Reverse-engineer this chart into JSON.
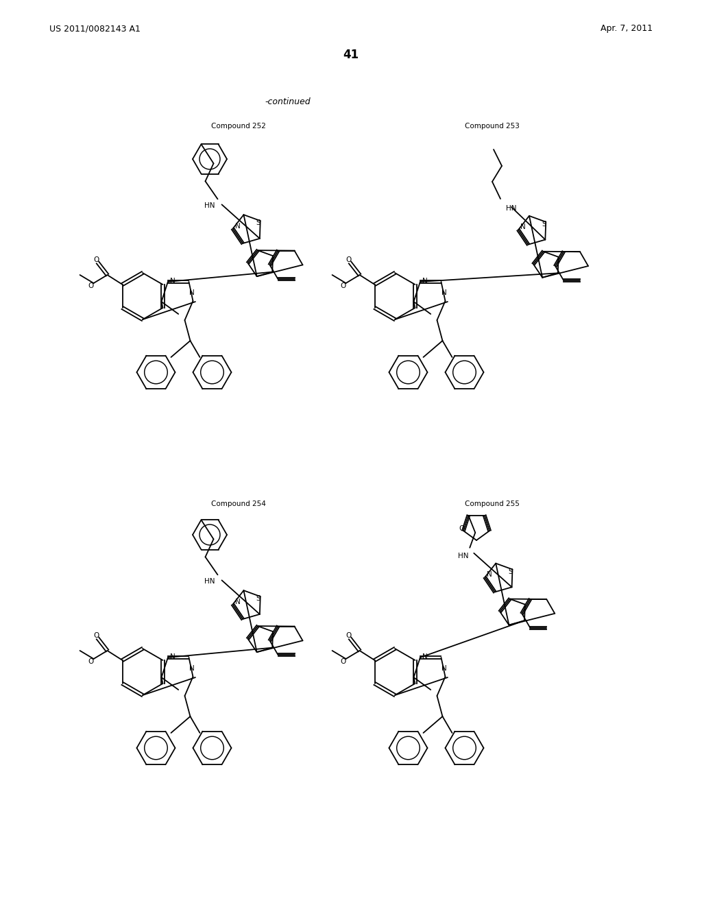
{
  "header_left": "US 2011/0082143 A1",
  "header_right": "Apr. 7, 2011",
  "page_number": "41",
  "continued": "-continued",
  "compound_labels": [
    "Compound 252",
    "Compound 253",
    "Compound 254",
    "Compound 255"
  ],
  "bg_color": "#ffffff",
  "bond_color": "#000000",
  "text_color": "#000000"
}
